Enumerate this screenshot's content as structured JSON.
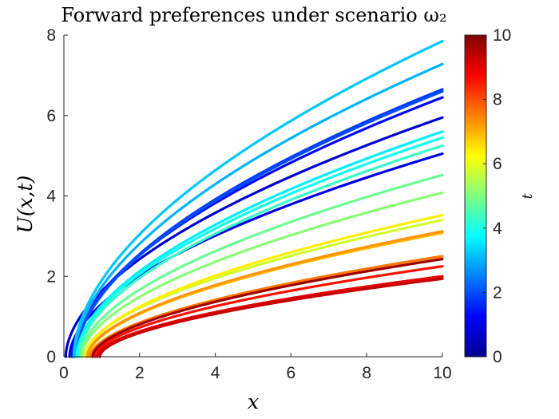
{
  "chart_data": {
    "type": "line",
    "title": "Forward preferences under scenario ω₂",
    "xlabel": "x",
    "ylabel": "U(x,t)",
    "xlim": [
      0,
      10
    ],
    "ylim": [
      0,
      8
    ],
    "xticks": [
      "0",
      "2",
      "4",
      "6",
      "8",
      "10"
    ],
    "yticks": [
      "0",
      "2",
      "4",
      "6",
      "8"
    ],
    "grid": false,
    "colorbar": {
      "label": "t",
      "range": [
        0,
        10
      ],
      "ticks": [
        "0",
        "2",
        "4",
        "6",
        "8",
        "10"
      ],
      "colormap": "jet"
    },
    "series": [
      {
        "t": 3.2,
        "x0": 0.26,
        "end": 7.85
      },
      {
        "t": 3.0,
        "x0": 0.28,
        "end": 7.28
      },
      {
        "t": 1.8,
        "x0": 0.3,
        "end": 6.65
      },
      {
        "t": 2.0,
        "x0": 0.32,
        "end": 6.6
      },
      {
        "t": 1.3,
        "x0": 0.22,
        "end": 6.45
      },
      {
        "t": 0.8,
        "x0": 0.05,
        "end": 5.95
      },
      {
        "t": 3.6,
        "x0": 0.34,
        "end": 5.6
      },
      {
        "t": 3.9,
        "x0": 0.36,
        "end": 5.45
      },
      {
        "t": 4.3,
        "x0": 0.4,
        "end": 5.25
      },
      {
        "t": 1.0,
        "x0": 0.15,
        "end": 5.05
      },
      {
        "t": 4.8,
        "x0": 0.44,
        "end": 4.52
      },
      {
        "t": 5.1,
        "x0": 0.48,
        "end": 4.08
      },
      {
        "t": 6.4,
        "x0": 0.58,
        "end": 3.52
      },
      {
        "t": 5.8,
        "x0": 0.55,
        "end": 3.4
      },
      {
        "t": 7.3,
        "x0": 0.62,
        "end": 3.12
      },
      {
        "t": 6.9,
        "x0": 0.64,
        "end": 3.08
      },
      {
        "t": 7.6,
        "x0": 0.7,
        "end": 2.5
      },
      {
        "t": 9.7,
        "x0": 0.76,
        "end": 2.43
      },
      {
        "t": 8.6,
        "x0": 0.82,
        "end": 2.25
      },
      {
        "t": 9.0,
        "x0": 0.88,
        "end": 2.0
      },
      {
        "t": 9.3,
        "x0": 0.95,
        "end": 1.94
      }
    ]
  }
}
